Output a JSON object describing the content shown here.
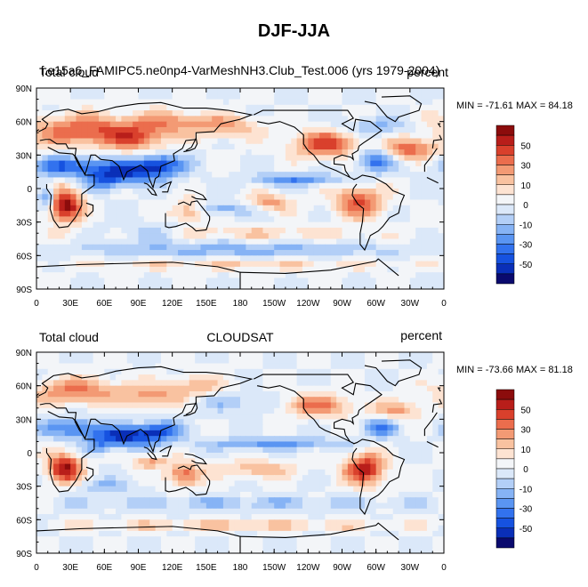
{
  "title": "DJF-JJA",
  "colors": {
    "scale": [
      "#0a0a6e",
      "#0a2fb8",
      "#1652e0",
      "#3272ee",
      "#5a95f2",
      "#86b3f5",
      "#b3cff7",
      "#dbe8f9",
      "#f3f5f8",
      "#fde3d2",
      "#f9c2a0",
      "#f39a74",
      "#eb6d4d",
      "#d9402c",
      "#b81e1a",
      "#8c0c0c"
    ],
    "continent": "#000000"
  },
  "colorbar_labels": [
    "50",
    "30",
    "10",
    "0",
    "-10",
    "-30",
    "-50"
  ],
  "chart_data": [
    {
      "type": "heatmap",
      "title_left": "Total cloud",
      "title_center": "f.e15a6_FAMIPC5.ne0np4-VarMeshNH3.Club_Test.006 (yrs 1979-2004)",
      "title_right": "percent",
      "min_max": "MIN = -71.61 MAX =  84.18",
      "min": -71.61,
      "max": 84.18,
      "x_ticks": [
        "0",
        "30E",
        "60E",
        "90E",
        "120E",
        "150E",
        "180",
        "150W",
        "120W",
        "90W",
        "60W",
        "30W",
        "0"
      ],
      "y_ticks": [
        "90N",
        "60N",
        "30N",
        "0",
        "30S",
        "60S",
        "90S"
      ],
      "xlim": [
        0,
        360
      ],
      "ylim": [
        -90,
        90
      ],
      "level_range": [
        -60,
        60
      ],
      "blobs": [
        {
          "lon": 40,
          "lat": 52,
          "rx": 45,
          "ry": 14,
          "v": 42
        },
        {
          "lon": 90,
          "lat": 45,
          "rx": 30,
          "ry": 12,
          "v": 34
        },
        {
          "lon": 120,
          "lat": 60,
          "rx": 40,
          "ry": 10,
          "v": 26
        },
        {
          "lon": 170,
          "lat": 55,
          "rx": 30,
          "ry": 10,
          "v": 24
        },
        {
          "lon": 25,
          "lat": 20,
          "rx": 30,
          "ry": 9,
          "v": -40
        },
        {
          "lon": 80,
          "lat": 15,
          "rx": 35,
          "ry": 10,
          "v": -52
        },
        {
          "lon": 110,
          "lat": 22,
          "rx": 20,
          "ry": 9,
          "v": -40
        },
        {
          "lon": 60,
          "lat": 5,
          "rx": 15,
          "ry": 8,
          "v": -28
        },
        {
          "lon": 25,
          "lat": -15,
          "rx": 15,
          "ry": 15,
          "v": 66
        },
        {
          "lon": 10,
          "lat": -8,
          "rx": 8,
          "ry": 10,
          "v": -42
        },
        {
          "lon": 135,
          "lat": -20,
          "rx": 15,
          "ry": 10,
          "v": 34
        },
        {
          "lon": 165,
          "lat": -18,
          "rx": 30,
          "ry": 6,
          "v": -26
        },
        {
          "lon": 205,
          "lat": -13,
          "rx": 22,
          "ry": 8,
          "v": 30
        },
        {
          "lon": 230,
          "lat": 8,
          "rx": 40,
          "ry": 5,
          "v": -32
        },
        {
          "lon": 285,
          "lat": -12,
          "rx": 22,
          "ry": 14,
          "v": 44
        },
        {
          "lon": 300,
          "lat": 25,
          "rx": 15,
          "ry": 10,
          "v": -44
        },
        {
          "lon": 255,
          "lat": 40,
          "rx": 30,
          "ry": 12,
          "v": 46
        },
        {
          "lon": 330,
          "lat": 35,
          "rx": 25,
          "ry": 10,
          "v": 38
        },
        {
          "lon": 300,
          "lat": 55,
          "rx": 30,
          "ry": 8,
          "v": -20
        },
        {
          "lon": 180,
          "lat": -55,
          "rx": 140,
          "ry": 6,
          "v": -22
        },
        {
          "lon": 180,
          "lat": -68,
          "rx": 160,
          "ry": 5,
          "v": 16
        },
        {
          "lon": 180,
          "lat": -40,
          "rx": 120,
          "ry": 5,
          "v": 18
        },
        {
          "lon": 100,
          "lat": -40,
          "rx": 40,
          "ry": 8,
          "v": -18
        }
      ]
    },
    {
      "type": "heatmap",
      "title_left": "Total cloud",
      "title_center": "CLOUDSAT",
      "title_right": "percent",
      "min_max": "MIN = -73.66 MAX =  81.18",
      "min": -73.66,
      "max": 81.18,
      "x_ticks": [
        "0",
        "30E",
        "60E",
        "90E",
        "120E",
        "150E",
        "180",
        "150W",
        "120W",
        "90W",
        "60W",
        "30W",
        "0"
      ],
      "y_ticks": [
        "90N",
        "60N",
        "30N",
        "0",
        "30S",
        "60S",
        "90S"
      ],
      "xlim": [
        0,
        360
      ],
      "ylim": [
        -90,
        90
      ],
      "level_range": [
        -60,
        60
      ],
      "blobs": [
        {
          "lon": 35,
          "lat": 55,
          "rx": 40,
          "ry": 12,
          "v": 36
        },
        {
          "lon": 100,
          "lat": 50,
          "rx": 25,
          "ry": 10,
          "v": 28
        },
        {
          "lon": 140,
          "lat": 60,
          "rx": 30,
          "ry": 10,
          "v": 22
        },
        {
          "lon": 30,
          "lat": 22,
          "rx": 25,
          "ry": 9,
          "v": -36
        },
        {
          "lon": 80,
          "lat": 15,
          "rx": 30,
          "ry": 9,
          "v": -56
        },
        {
          "lon": 110,
          "lat": 20,
          "rx": 18,
          "ry": 8,
          "v": -36
        },
        {
          "lon": 55,
          "lat": 5,
          "rx": 12,
          "ry": 7,
          "v": -24
        },
        {
          "lon": 25,
          "lat": -14,
          "rx": 15,
          "ry": 13,
          "v": 62
        },
        {
          "lon": 130,
          "lat": -20,
          "rx": 15,
          "ry": 10,
          "v": 42
        },
        {
          "lon": 100,
          "lat": -8,
          "rx": 15,
          "ry": 6,
          "v": 30
        },
        {
          "lon": 210,
          "lat": 8,
          "rx": 60,
          "ry": 5,
          "v": -30
        },
        {
          "lon": 195,
          "lat": -15,
          "rx": 35,
          "ry": 8,
          "v": 24
        },
        {
          "lon": 290,
          "lat": -15,
          "rx": 18,
          "ry": 14,
          "v": 58
        },
        {
          "lon": 305,
          "lat": 22,
          "rx": 15,
          "ry": 8,
          "v": -36
        },
        {
          "lon": 250,
          "lat": 42,
          "rx": 30,
          "ry": 10,
          "v": 36
        },
        {
          "lon": 320,
          "lat": 38,
          "rx": 20,
          "ry": 8,
          "v": 30
        },
        {
          "lon": 180,
          "lat": -45,
          "rx": 150,
          "ry": 6,
          "v": -16
        },
        {
          "lon": 180,
          "lat": -65,
          "rx": 160,
          "ry": 5,
          "v": 20
        },
        {
          "lon": 60,
          "lat": -30,
          "rx": 25,
          "ry": 6,
          "v": -18
        },
        {
          "lon": 175,
          "lat": 45,
          "rx": 25,
          "ry": 8,
          "v": -18
        }
      ]
    }
  ]
}
